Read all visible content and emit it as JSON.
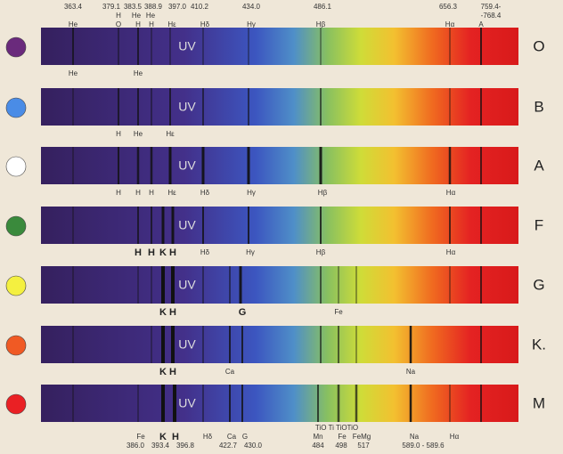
{
  "wavelength_labels": [
    "363.4",
    "379.1",
    "383.5",
    "388.9",
    "397.0",
    "410.2",
    "434.0",
    "486.1",
    "656.3",
    "759.4-",
    "-768.4"
  ],
  "top_line_labels": [
    "H",
    "He",
    "He",
    "He",
    "O",
    "H",
    "H",
    "Hε",
    "Hδ",
    "Hγ",
    "Hβ",
    "Hα",
    "A"
  ],
  "spectra": [
    {
      "class": "O",
      "uv": "UV",
      "labels_below": [
        "He",
        "He"
      ]
    },
    {
      "class": "B",
      "uv": "UV",
      "labels_below": [
        "H",
        "He",
        "Hε"
      ]
    },
    {
      "class": "A",
      "uv": "UV",
      "labels_below": [
        "H",
        "H",
        "H",
        "Hε",
        "Hδ",
        "Hγ",
        "Hβ",
        "Hα"
      ]
    },
    {
      "class": "F",
      "uv": "UV",
      "labels_below": [
        "H",
        "H",
        "K",
        "H",
        "Hδ",
        "Hγ",
        "Hβ",
        "Hα"
      ]
    },
    {
      "class": "G",
      "uv": "UV",
      "labels_below": [
        "K",
        "H",
        "G",
        "Fe"
      ]
    },
    {
      "class": "K.",
      "uv": "UV",
      "labels_below": [
        "K",
        "H",
        "Ca",
        "Na"
      ]
    },
    {
      "class": "M",
      "uv": "UV",
      "labels_below": []
    }
  ],
  "m_labels": {
    "top_row": [
      "TiO Ti TiOTiO"
    ],
    "middle_row": [
      "Fe",
      "K",
      "H",
      "Hδ",
      "Ca",
      "G",
      "Mn",
      "Fe",
      "FeMg",
      "Na",
      "Hα"
    ],
    "bottom_row": [
      "386.0",
      "393.4",
      "396.8",
      "422.7",
      "430.0",
      "484",
      "498",
      "517",
      "589.0 - 589.6"
    ]
  }
}
